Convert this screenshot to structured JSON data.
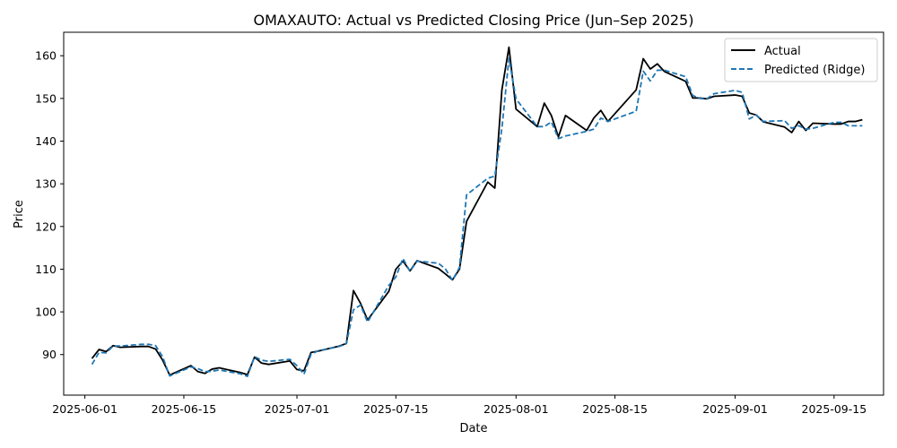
{
  "chart_data": {
    "type": "line",
    "title": "OMAXAUTO: Actual vs Predicted Closing Price (Jun–Sep 2025)",
    "xlabel": "Date",
    "ylabel": "Price",
    "xlim": [
      "2025-05-29",
      "2025-09-22"
    ],
    "ylim": [
      80.5,
      165.5
    ],
    "x_ticks": [
      "2025-06-01",
      "2025-06-15",
      "2025-07-01",
      "2025-07-15",
      "2025-08-01",
      "2025-08-15",
      "2025-09-01",
      "2025-09-15"
    ],
    "y_ticks": [
      90,
      100,
      110,
      120,
      130,
      140,
      150,
      160
    ],
    "grid": false,
    "legend_position": "top-right",
    "colors": {
      "actual": "#000000",
      "predicted": "#1f77b4"
    },
    "series": [
      {
        "name": "Actual",
        "style": "solid",
        "points": [
          [
            "2025-06-02",
            89.1
          ],
          [
            "2025-06-03",
            91.2
          ],
          [
            "2025-06-04",
            90.7
          ],
          [
            "2025-06-05",
            92.1
          ],
          [
            "2025-06-06",
            91.7
          ],
          [
            "2025-06-09",
            91.9
          ],
          [
            "2025-06-10",
            91.9
          ],
          [
            "2025-06-11",
            91.3
          ],
          [
            "2025-06-12",
            88.7
          ],
          [
            "2025-06-13",
            85.2
          ],
          [
            "2025-06-16",
            87.4
          ],
          [
            "2025-06-17",
            86.0
          ],
          [
            "2025-06-18",
            85.6
          ],
          [
            "2025-06-19",
            86.6
          ],
          [
            "2025-06-20",
            86.9
          ],
          [
            "2025-06-23",
            85.8
          ],
          [
            "2025-06-24",
            85.3
          ],
          [
            "2025-06-25",
            89.4
          ],
          [
            "2025-06-26",
            88.0
          ],
          [
            "2025-06-27",
            87.7
          ],
          [
            "2025-06-30",
            88.5
          ],
          [
            "2025-07-01",
            86.5
          ],
          [
            "2025-07-02",
            86.2
          ],
          [
            "2025-07-03",
            90.5
          ],
          [
            "2025-07-04",
            90.8
          ],
          [
            "2025-07-07",
            92.0
          ],
          [
            "2025-07-08",
            92.6
          ],
          [
            "2025-07-09",
            105.0
          ],
          [
            "2025-07-10",
            102.0
          ],
          [
            "2025-07-11",
            98.1
          ],
          [
            "2025-07-14",
            104.8
          ],
          [
            "2025-07-15",
            110.0
          ],
          [
            "2025-07-16",
            111.9
          ],
          [
            "2025-07-17",
            109.6
          ],
          [
            "2025-07-18",
            112.0
          ],
          [
            "2025-07-21",
            110.2
          ],
          [
            "2025-07-22",
            108.9
          ],
          [
            "2025-07-23",
            107.5
          ],
          [
            "2025-07-24",
            110.0
          ],
          [
            "2025-07-25",
            121.2
          ],
          [
            "2025-07-28",
            130.4
          ],
          [
            "2025-07-29",
            129.0
          ],
          [
            "2025-07-30",
            152.0
          ],
          [
            "2025-07-31",
            162.0
          ],
          [
            "2025-08-01",
            147.5
          ],
          [
            "2025-08-04",
            143.4
          ],
          [
            "2025-08-05",
            148.9
          ],
          [
            "2025-08-06",
            146.0
          ],
          [
            "2025-08-07",
            141.0
          ],
          [
            "2025-08-08",
            146.0
          ],
          [
            "2025-08-11",
            142.5
          ],
          [
            "2025-08-12",
            145.4
          ],
          [
            "2025-08-13",
            147.2
          ],
          [
            "2025-08-14",
            144.6
          ],
          [
            "2025-08-18",
            152.0
          ],
          [
            "2025-08-19",
            159.3
          ],
          [
            "2025-08-20",
            156.9
          ],
          [
            "2025-08-21",
            158.1
          ],
          [
            "2025-08-22",
            156.3
          ],
          [
            "2025-08-25",
            154.0
          ],
          [
            "2025-08-26",
            150.1
          ],
          [
            "2025-08-27",
            150.1
          ],
          [
            "2025-08-28",
            149.9
          ],
          [
            "2025-08-29",
            150.5
          ],
          [
            "2025-09-01",
            150.8
          ],
          [
            "2025-09-02",
            150.5
          ],
          [
            "2025-09-03",
            146.6
          ],
          [
            "2025-09-04",
            146.1
          ],
          [
            "2025-09-05",
            144.5
          ],
          [
            "2025-09-08",
            143.3
          ],
          [
            "2025-09-09",
            142.0
          ],
          [
            "2025-09-10",
            144.6
          ],
          [
            "2025-09-11",
            142.5
          ],
          [
            "2025-09-12",
            144.2
          ],
          [
            "2025-09-15",
            144.0
          ],
          [
            "2025-09-16",
            144.0
          ],
          [
            "2025-09-17",
            144.6
          ],
          [
            "2025-09-18",
            144.6
          ],
          [
            "2025-09-19",
            145.0
          ]
        ]
      },
      {
        "name": "Predicted (Ridge)",
        "style": "dashed",
        "points": [
          [
            "2025-06-02",
            87.7
          ],
          [
            "2025-06-03",
            90.5
          ],
          [
            "2025-06-04",
            90.4
          ],
          [
            "2025-06-05",
            92.0
          ],
          [
            "2025-06-06",
            92.0
          ],
          [
            "2025-06-09",
            92.4
          ],
          [
            "2025-06-10",
            92.4
          ],
          [
            "2025-06-11",
            92.1
          ],
          [
            "2025-06-12",
            89.5
          ],
          [
            "2025-06-13",
            85.0
          ],
          [
            "2025-06-16",
            87.1
          ],
          [
            "2025-06-17",
            86.7
          ],
          [
            "2025-06-18",
            86.0
          ],
          [
            "2025-06-19",
            86.1
          ],
          [
            "2025-06-20",
            86.4
          ],
          [
            "2025-06-23",
            85.5
          ],
          [
            "2025-06-24",
            84.9
          ],
          [
            "2025-06-25",
            89.5
          ],
          [
            "2025-06-26",
            88.7
          ],
          [
            "2025-06-27",
            88.4
          ],
          [
            "2025-06-30",
            88.9
          ],
          [
            "2025-07-01",
            87.4
          ],
          [
            "2025-07-02",
            85.4
          ],
          [
            "2025-07-03",
            90.1
          ],
          [
            "2025-07-04",
            90.9
          ],
          [
            "2025-07-07",
            91.9
          ],
          [
            "2025-07-08",
            92.6
          ],
          [
            "2025-07-09",
            100.5
          ],
          [
            "2025-07-10",
            101.6
          ],
          [
            "2025-07-11",
            97.6
          ],
          [
            "2025-07-14",
            106.2
          ],
          [
            "2025-07-15",
            108.2
          ],
          [
            "2025-07-16",
            112.5
          ],
          [
            "2025-07-17",
            109.5
          ],
          [
            "2025-07-18",
            111.9
          ],
          [
            "2025-07-21",
            111.4
          ],
          [
            "2025-07-22",
            110.1
          ],
          [
            "2025-07-23",
            107.4
          ],
          [
            "2025-07-24",
            110.4
          ],
          [
            "2025-07-25",
            127.4
          ],
          [
            "2025-07-28",
            131.3
          ],
          [
            "2025-07-29",
            131.8
          ],
          [
            "2025-07-30",
            143.0
          ],
          [
            "2025-07-31",
            159.4
          ],
          [
            "2025-08-01",
            149.9
          ],
          [
            "2025-08-04",
            143.4
          ],
          [
            "2025-08-05",
            143.4
          ],
          [
            "2025-08-06",
            144.5
          ],
          [
            "2025-08-07",
            140.6
          ],
          [
            "2025-08-08",
            141.2
          ],
          [
            "2025-08-11",
            142.3
          ],
          [
            "2025-08-12",
            142.8
          ],
          [
            "2025-08-13",
            145.4
          ],
          [
            "2025-08-14",
            144.6
          ],
          [
            "2025-08-18",
            147.0
          ],
          [
            "2025-08-19",
            156.4
          ],
          [
            "2025-08-20",
            154.1
          ],
          [
            "2025-08-21",
            156.6
          ],
          [
            "2025-08-22",
            156.6
          ],
          [
            "2025-08-25",
            155.1
          ],
          [
            "2025-08-26",
            150.7
          ],
          [
            "2025-08-27",
            150.0
          ],
          [
            "2025-08-28",
            149.9
          ],
          [
            "2025-08-29",
            151.1
          ],
          [
            "2025-09-01",
            151.9
          ],
          [
            "2025-09-02",
            151.4
          ],
          [
            "2025-09-03",
            145.2
          ],
          [
            "2025-09-04",
            146.1
          ],
          [
            "2025-09-05",
            144.6
          ],
          [
            "2025-09-08",
            144.8
          ],
          [
            "2025-09-09",
            143.0
          ],
          [
            "2025-09-10",
            143.6
          ],
          [
            "2025-09-11",
            142.8
          ],
          [
            "2025-09-12",
            143.0
          ],
          [
            "2025-09-15",
            144.4
          ],
          [
            "2025-09-16",
            144.4
          ],
          [
            "2025-09-17",
            143.6
          ],
          [
            "2025-09-18",
            143.6
          ],
          [
            "2025-09-19",
            143.6
          ]
        ]
      }
    ]
  }
}
